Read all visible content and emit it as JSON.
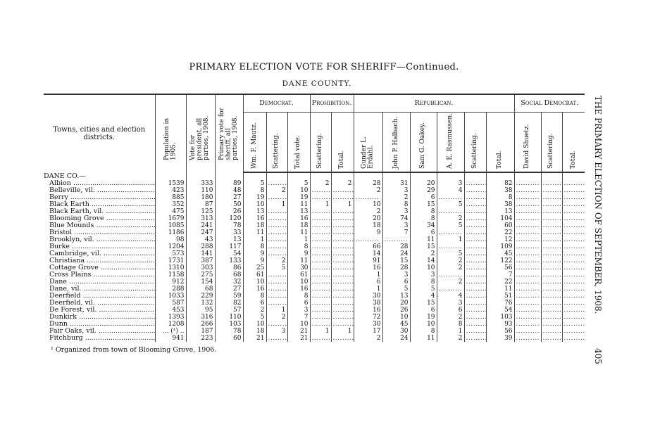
{
  "title": "PRIMARY ELECTION VOTE FOR SHERIFF",
  "title_suffix": "—Continued.",
  "county": "DANE COUNTY.",
  "running_head": "THE PRIMARY ELECTION OF SEPTEMBER, 1908.",
  "page_number": "405",
  "headers": {
    "district": "Towns, cities and election districts.",
    "population": "Population in 1905.",
    "vote_president": "Vote for president, all parties, 1908.",
    "primary_vote": "Primary vote for sheriff, all parties, 1908.",
    "democrat": "Democrat.",
    "prohibition": "Prohibition.",
    "republican": "Republican.",
    "social_democrat": "Social Democrat.",
    "dem_cols": [
      "Wm. F. Mautz.",
      "Scattering.",
      "Total vote."
    ],
    "pro_cols": [
      "Scattering.",
      "Total."
    ],
    "rep_cols": [
      "Gunder L. Erdahl.",
      "John P. Halbach.",
      "Sam G. Oakey.",
      "A. E. Rasmussen.",
      "Scattering.",
      "Total."
    ],
    "sd_cols": [
      "David Shuetz.",
      "Scattering.",
      "Total."
    ]
  },
  "county_label": "DANE CO.—",
  "rows": [
    {
      "name": "Albion",
      "v": [
        "1539",
        "333",
        "89",
        "5",
        "",
        "5",
        "2",
        "2",
        "28",
        "31",
        "20",
        "3",
        "",
        "82",
        "",
        "",
        ""
      ]
    },
    {
      "name": "Belleville, vil.",
      "v": [
        "423",
        "110",
        "48",
        "8",
        "2",
        "10",
        "",
        "",
        "2",
        "3",
        "29",
        "4",
        "",
        "38",
        "",
        "",
        ""
      ]
    },
    {
      "name": "Berry",
      "v": [
        "885",
        "180",
        "27",
        "19",
        "",
        "19",
        "",
        "",
        "",
        "2",
        "6",
        "",
        "",
        "8",
        "",
        "",
        ""
      ]
    },
    {
      "name": "Black Earth",
      "v": [
        "352",
        "87",
        "50",
        "10",
        "1",
        "11",
        "1",
        "1",
        "10",
        "8",
        "15",
        "5",
        "",
        "38",
        "",
        "",
        ""
      ]
    },
    {
      "name": "Black Earth, vil.",
      "v": [
        "475",
        "125",
        "26",
        "13",
        "",
        "13",
        "",
        "",
        "2",
        "3",
        "8",
        "",
        "",
        "13",
        "",
        "",
        ""
      ]
    },
    {
      "name": "Blooming Grove",
      "v": [
        "1679",
        "313",
        "120",
        "16",
        "",
        "16",
        "",
        "",
        "20",
        "74",
        "8",
        "2",
        "",
        "104",
        "",
        "",
        ""
      ]
    },
    {
      "name": "Blue Mounds",
      "v": [
        "1085",
        "241",
        "78",
        "18",
        "",
        "18",
        "",
        "",
        "18",
        "3",
        "34",
        "5",
        "",
        "60",
        "",
        "",
        ""
      ]
    },
    {
      "name": "Bristol",
      "v": [
        "1186",
        "247",
        "33",
        "11",
        "",
        "11",
        "",
        "",
        "9",
        "7",
        "6",
        "",
        "",
        "22",
        "",
        "",
        ""
      ]
    },
    {
      "name": "Brooklyn, vil.",
      "v": [
        "98",
        "43",
        "13",
        "1",
        "",
        "1",
        "",
        "",
        "",
        "",
        "11",
        "1",
        "",
        "12",
        "",
        "",
        ""
      ]
    },
    {
      "name": "Burke",
      "v": [
        "1204",
        "288",
        "117",
        "8",
        "",
        "8",
        "",
        "",
        "66",
        "28",
        "15",
        "",
        "",
        "109",
        "",
        "",
        ""
      ]
    },
    {
      "name": "Cambridge, vil.",
      "v": [
        "573",
        "141",
        "54",
        "9",
        "",
        "9",
        "",
        "",
        "14",
        "24",
        "2",
        "5",
        "",
        "45",
        "",
        "",
        ""
      ]
    },
    {
      "name": "Christiana",
      "v": [
        "1731",
        "387",
        "133",
        "9",
        "2",
        "11",
        "",
        "",
        "91",
        "15",
        "14",
        "2",
        "",
        "122",
        "",
        "",
        ""
      ]
    },
    {
      "name": "Cottage Grove",
      "v": [
        "1310",
        "303",
        "86",
        "25",
        "5",
        "30",
        "",
        "",
        "16",
        "28",
        "10",
        "2",
        "",
        "56",
        "",
        "",
        ""
      ]
    },
    {
      "name": "Cross Plains",
      "v": [
        "1158",
        "275",
        "68",
        "61",
        "",
        "61",
        "",
        "",
        "1",
        "3",
        "3",
        "",
        "",
        "7",
        "",
        "",
        ""
      ]
    },
    {
      "name": "Dane",
      "v": [
        "912",
        "154",
        "32",
        "10",
        "",
        "10",
        "",
        "",
        "6",
        "6",
        "8",
        "2",
        "",
        "22",
        "",
        "",
        ""
      ]
    },
    {
      "name": "Dane, vil.",
      "v": [
        "288",
        "68",
        "27",
        "16",
        "",
        "16",
        "",
        "",
        "1",
        "5",
        "5",
        "",
        "",
        "11",
        "",
        "",
        ""
      ]
    },
    {
      "name": "Deerfield",
      "v": [
        "1033",
        "229",
        "59",
        "8",
        "",
        "8",
        "",
        "",
        "30",
        "13",
        "4",
        "4",
        "",
        "51",
        "",
        "",
        ""
      ]
    },
    {
      "name": "Deerfield, vil.",
      "v": [
        "587",
        "132",
        "82",
        "6",
        "",
        "6",
        "",
        "",
        "38",
        "20",
        "15",
        "3",
        "",
        "76",
        "",
        "",
        ""
      ]
    },
    {
      "name": "De Forest, vil.",
      "v": [
        "453",
        "95",
        "57",
        "2",
        "1",
        "3",
        "",
        "",
        "16",
        "26",
        "6",
        "6",
        "",
        "54",
        "",
        "",
        ""
      ]
    },
    {
      "name": "Dunkirk",
      "v": [
        "1393",
        "316",
        "110",
        "5",
        "2",
        "7",
        "",
        "",
        "72",
        "10",
        "19",
        "2",
        "",
        "103",
        "",
        "",
        ""
      ]
    },
    {
      "name": "Dunn",
      "v": [
        "1208",
        "266",
        "103",
        "10",
        "",
        "10",
        "",
        "",
        "30",
        "45",
        "10",
        "8",
        "",
        "93",
        "",
        "",
        ""
      ]
    },
    {
      "name": "Fair Oaks, vil.",
      "v": [
        "... (¹) ..",
        "187",
        "78",
        "18",
        "3",
        "21",
        "1",
        "1",
        "17",
        "30",
        "8",
        "1",
        "",
        "56",
        "",
        "",
        ""
      ]
    },
    {
      "name": "Fitchburg",
      "v": [
        "941",
        "223",
        "60",
        "21",
        "",
        "21",
        "",
        "",
        "2",
        "24",
        "11",
        "2",
        "",
        "39",
        "",
        "",
        ""
      ]
    }
  ],
  "footnote": "¹ Organized from town of Blooming Grove, 1906."
}
